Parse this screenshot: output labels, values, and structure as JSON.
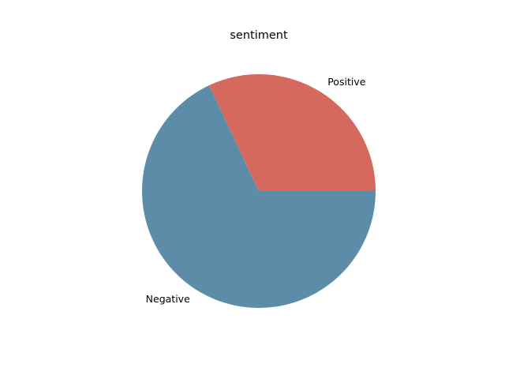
{
  "chart_data": {
    "type": "pie",
    "title": "sentiment",
    "start_angle_deg": 0,
    "direction": "counterclockwise",
    "slices": [
      {
        "label": "Positive",
        "value": 32,
        "color": "#d5695d"
      },
      {
        "label": "Negative",
        "value": 68,
        "color": "#5d8ca8"
      }
    ]
  }
}
